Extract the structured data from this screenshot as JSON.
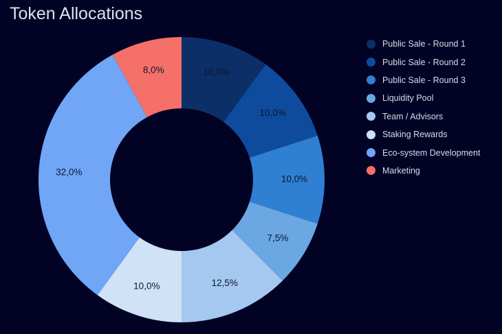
{
  "chart_data": {
    "type": "pie",
    "title": "Token Allocations",
    "donut": true,
    "legend_position": "right",
    "categories": [
      "Public Sale - Round 1",
      "Public Sale - Round 2",
      "Public Sale - Round 3",
      "Liquidity Pool",
      "Team / Advisors",
      "Staking Rewards",
      "Eco-system Development",
      "Marketing"
    ],
    "values": [
      10.0,
      10.0,
      10.0,
      7.5,
      12.5,
      10.0,
      32.0,
      8.0
    ],
    "labels": [
      "10,0%",
      "10,0%",
      "10,0%",
      "7,5%",
      "12,5%",
      "10,0%",
      "32,0%",
      "8,0%"
    ],
    "colors": [
      "#0b2f66",
      "#0e4b9c",
      "#2f7fd3",
      "#6aa7e3",
      "#a4c8ef",
      "#cfe2f6",
      "#70a6f5",
      "#f47069"
    ]
  }
}
